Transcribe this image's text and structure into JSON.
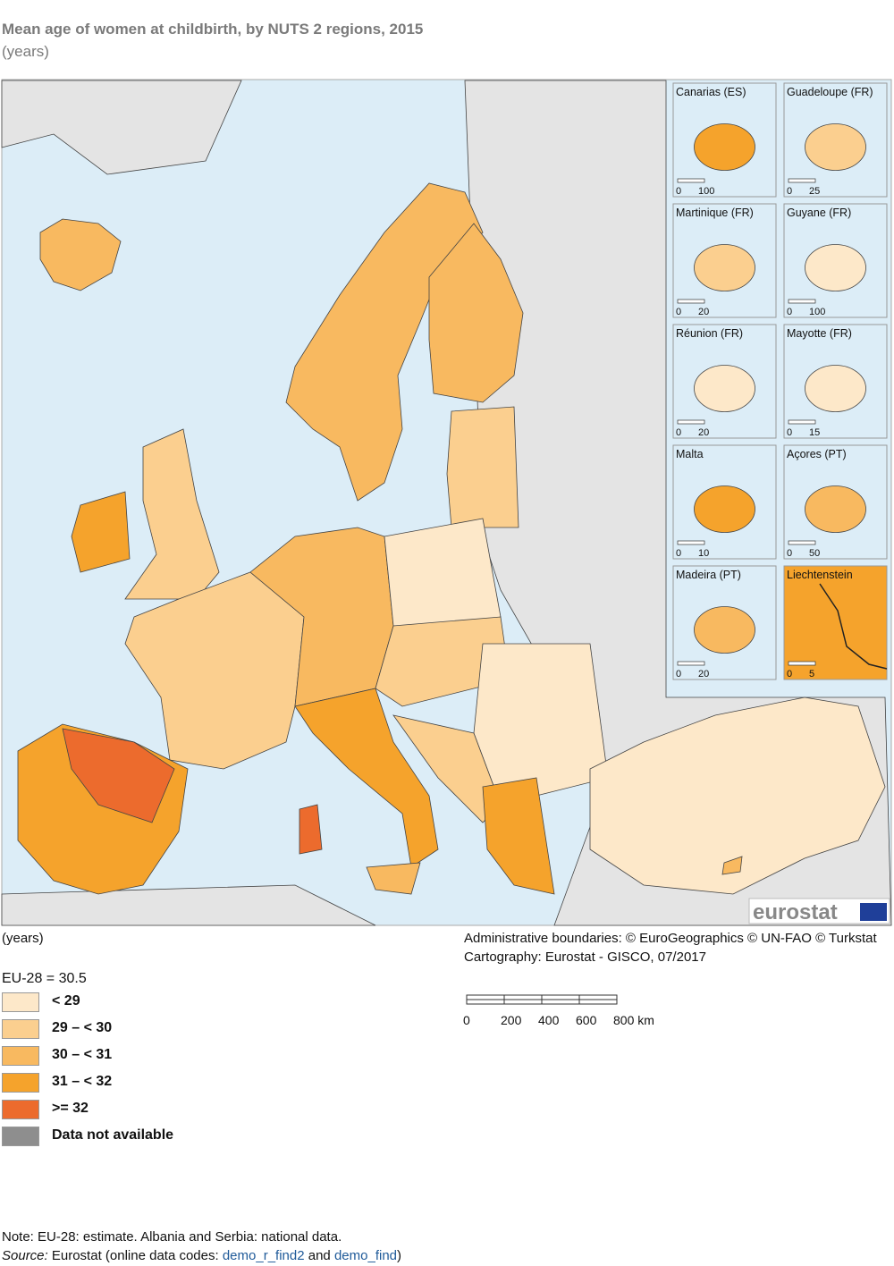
{
  "header": {
    "title": "Mean age of women at childbirth, by NUTS 2 regions, 2015",
    "subtitle": "(years)"
  },
  "map": {
    "insets": [
      {
        "title": "Canarias (ES)",
        "scale": [
          0,
          100
        ]
      },
      {
        "title": "Guadeloupe (FR)",
        "scale": [
          0,
          25
        ]
      },
      {
        "title": "Martinique (FR)",
        "scale": [
          0,
          20
        ]
      },
      {
        "title": "Guyane (FR)",
        "scale": [
          0,
          100
        ]
      },
      {
        "title": "Réunion (FR)",
        "scale": [
          0,
          20
        ]
      },
      {
        "title": "Mayotte (FR)",
        "scale": [
          0,
          15
        ]
      },
      {
        "title": "Malta",
        "scale": [
          0,
          10
        ]
      },
      {
        "title": "Açores (PT)",
        "scale": [
          0,
          50
        ]
      },
      {
        "title": "Madeira (PT)",
        "scale": [
          0,
          20
        ]
      },
      {
        "title": "Liechtenstein",
        "scale": [
          0,
          5
        ]
      }
    ],
    "logo": "eurostat",
    "scale_bar": [
      "0",
      "200",
      "400",
      "600",
      "800 km"
    ]
  },
  "credits": [
    "Administrative boundaries: © EuroGeographics © UN-FAO © Turkstat",
    "Cartography: Eurostat - GISCO, 07/2017"
  ],
  "legend": {
    "title": "(years)",
    "eu_average": "EU-28 = 30.5",
    "items": [
      {
        "label": "< 29",
        "color": "#fde8c9"
      },
      {
        "label": "29 – < 30",
        "color": "#fbcf8f"
      },
      {
        "label": "30 – < 31",
        "color": "#f8b960"
      },
      {
        "label": "31 – < 32",
        "color": "#f5a32c"
      },
      {
        "label": ">= 32",
        "color": "#ec6b2d"
      },
      {
        "label": "Data not available",
        "color": "#8e8e8e"
      }
    ]
  },
  "footer": {
    "note": "Note: EU-28: estimate. Albania and Serbia: national data.",
    "source_label": "Source:",
    "source_text": "Eurostat (online data codes:",
    "link1": "demo_r_find2",
    "conjunction": "and",
    "link2": "demo_find",
    "close": ")"
  }
}
